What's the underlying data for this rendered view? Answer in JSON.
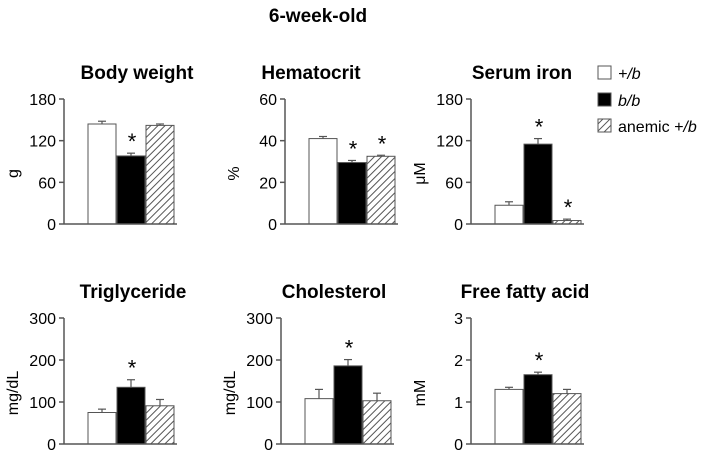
{
  "figure_title": "6-week-old",
  "colors": {
    "plus_b": "#ffffff",
    "b_b": "#000000",
    "anemic": "hatched",
    "axis": "#555555"
  },
  "legend": [
    {
      "label": "+/b",
      "style": "white"
    },
    {
      "label": "b/b",
      "style": "black"
    },
    {
      "label_plain": "anemic ",
      "label_italic": "+/b",
      "style": "hatched"
    }
  ],
  "chart_data": [
    {
      "type": "bar",
      "title": "Body weight",
      "ylabel": "g",
      "ylim": [
        0,
        180
      ],
      "yticks": [
        "0",
        "60",
        "120",
        "180"
      ],
      "series": [
        {
          "name": "+/b",
          "values": [
            144
          ],
          "errors": [
            4
          ]
        },
        {
          "name": "b/b",
          "values": [
            98
          ],
          "errors": [
            4
          ],
          "significant": true
        },
        {
          "name": "anemic +/b",
          "values": [
            142
          ],
          "errors": [
            2
          ]
        }
      ]
    },
    {
      "type": "bar",
      "title": "Hematocrit",
      "ylabel": "%",
      "ylim": [
        0,
        60
      ],
      "yticks": [
        "0",
        "20",
        "40",
        "60"
      ],
      "series": [
        {
          "name": "+/b",
          "values": [
            41
          ],
          "errors": [
            1
          ]
        },
        {
          "name": "b/b",
          "values": [
            29.5
          ],
          "errors": [
            1
          ],
          "significant": true
        },
        {
          "name": "anemic +/b",
          "values": [
            32.5
          ],
          "errors": [
            0.5
          ],
          "significant": true
        }
      ]
    },
    {
      "type": "bar",
      "title": "Serum iron",
      "ylabel": "μM",
      "ylim": [
        0,
        180
      ],
      "yticks": [
        "0",
        "60",
        "120",
        "180"
      ],
      "series": [
        {
          "name": "+/b",
          "values": [
            27
          ],
          "errors": [
            5
          ]
        },
        {
          "name": "b/b",
          "values": [
            115
          ],
          "errors": [
            8
          ],
          "significant": true
        },
        {
          "name": "anemic +/b",
          "values": [
            5
          ],
          "errors": [
            2
          ],
          "significant": true
        }
      ]
    },
    {
      "type": "bar",
      "title": "Triglyceride",
      "ylabel": "mg/dL",
      "ylim": [
        0,
        300
      ],
      "yticks": [
        "0",
        "100",
        "200",
        "300"
      ],
      "series": [
        {
          "name": "+/b",
          "values": [
            75
          ],
          "errors": [
            8
          ]
        },
        {
          "name": "b/b",
          "values": [
            135
          ],
          "errors": [
            18
          ],
          "significant": true
        },
        {
          "name": "anemic +/b",
          "values": [
            91
          ],
          "errors": [
            15
          ]
        }
      ]
    },
    {
      "type": "bar",
      "title": "Cholesterol",
      "ylabel": "mg/dL",
      "ylim": [
        0,
        300
      ],
      "yticks": [
        "0",
        "100",
        "200",
        "300"
      ],
      "series": [
        {
          "name": "+/b",
          "values": [
            108
          ],
          "errors": [
            22
          ]
        },
        {
          "name": "b/b",
          "values": [
            186
          ],
          "errors": [
            15
          ],
          "significant": true
        },
        {
          "name": "anemic +/b",
          "values": [
            103
          ],
          "errors": [
            18
          ]
        }
      ]
    },
    {
      "type": "bar",
      "title": "Free fatty acid",
      "ylabel": "mM",
      "ylim": [
        0,
        3
      ],
      "yticks": [
        "0",
        "1",
        "2",
        "3"
      ],
      "series": [
        {
          "name": "+/b",
          "values": [
            1.3
          ],
          "errors": [
            0.05
          ]
        },
        {
          "name": "b/b",
          "values": [
            1.65
          ],
          "errors": [
            0.06
          ],
          "significant": true
        },
        {
          "name": "anemic +/b",
          "values": [
            1.2
          ],
          "errors": [
            0.1
          ]
        }
      ]
    }
  ]
}
